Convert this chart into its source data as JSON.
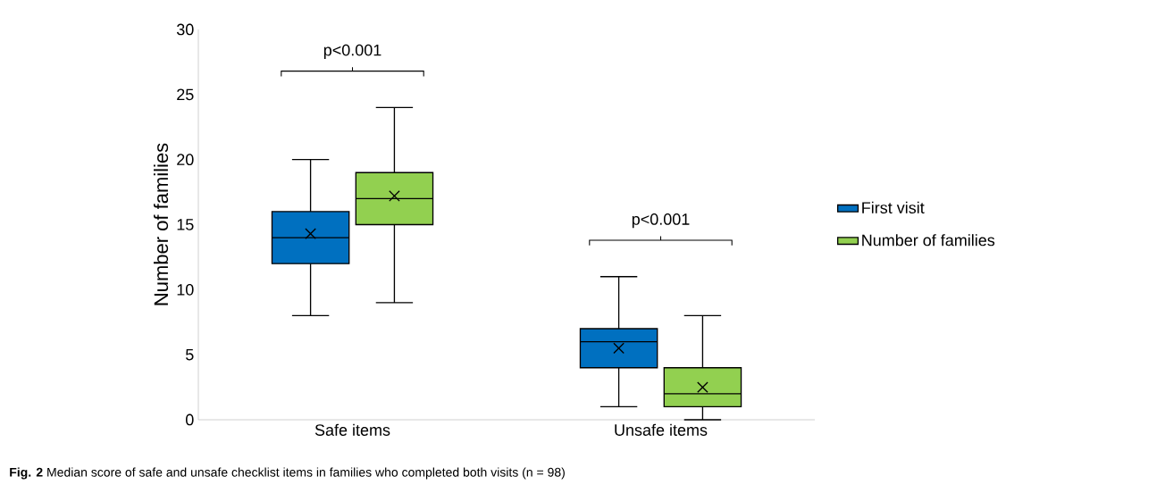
{
  "chart_data": {
    "type": "box",
    "ylabel": "Number of families",
    "categories": [
      "Safe items",
      "Unsafe items"
    ],
    "ylim": [
      0,
      30
    ],
    "yticks": [
      0,
      5,
      10,
      15,
      20,
      25,
      30
    ],
    "grid": false,
    "legend": "right",
    "marker": "cross",
    "series": [
      {
        "name": "First visit",
        "color": "#0070c0",
        "boxes": [
          {
            "low": 8,
            "q1": 12,
            "median": 14,
            "q3": 16,
            "high": 20,
            "mean": 14.3
          },
          {
            "low": 1,
            "q1": 4,
            "median": 6,
            "q3": 7,
            "high": 11,
            "mean": 5.5
          }
        ]
      },
      {
        "name": "Number of families",
        "color": "#92d050",
        "boxes": [
          {
            "low": 9,
            "q1": 15,
            "median": 17,
            "q3": 19,
            "high": 24,
            "mean": 17.2
          },
          {
            "low": 0,
            "q1": 1,
            "median": 2,
            "q3": 4,
            "high": 8,
            "mean": 2.5
          }
        ]
      }
    ],
    "annotations": [
      "p<0.001",
      "p<0.001",
      "**Fig. 2** Median score of safe and unsafe checklist items in families who completed both visits (n = 98)"
    ]
  }
}
